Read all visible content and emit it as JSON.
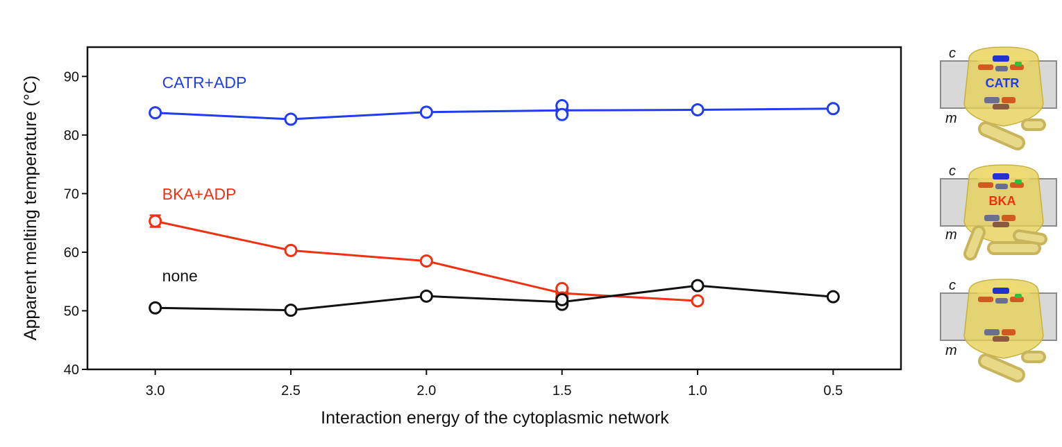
{
  "chart_data": {
    "type": "line",
    "xlabel": "Interaction energy of the cytoplasmic network",
    "ylabel": "Apparent melting temperature (°C)",
    "x_ticks": [
      "3.0",
      "2.5",
      "2.0",
      "1.5",
      "1.0",
      "0.5"
    ],
    "x_reversed": true,
    "xlim": [
      3.25,
      0.25
    ],
    "ylim": [
      40,
      95
    ],
    "y_ticks": [
      "40",
      "50",
      "60",
      "70",
      "80",
      "90"
    ],
    "grid": false,
    "series": [
      {
        "name": "CATR+ADP",
        "color": "#1f3cf0",
        "points": [
          {
            "x": 3.0,
            "y": 83.8
          },
          {
            "x": 2.5,
            "y": 82.7
          },
          {
            "x": 2.0,
            "y": 83.9
          },
          {
            "x": 1.5,
            "y": 84.2
          },
          {
            "x": 1.0,
            "y": 84.3
          },
          {
            "x": 0.5,
            "y": 84.5
          }
        ],
        "extra_points": [
          {
            "x": 1.5,
            "y": 85.0
          },
          {
            "x": 1.5,
            "y": 83.5
          }
        ]
      },
      {
        "name": "BKA+ADP",
        "color": "#f03010",
        "points": [
          {
            "x": 3.0,
            "y": 65.3,
            "error": 1.0
          },
          {
            "x": 2.5,
            "y": 60.3
          },
          {
            "x": 2.0,
            "y": 58.5
          },
          {
            "x": 1.5,
            "y": 53.0
          },
          {
            "x": 1.0,
            "y": 51.7
          }
        ],
        "extra_points": [
          {
            "x": 1.5,
            "y": 53.8
          },
          {
            "x": 1.5,
            "y": 52.2
          }
        ]
      },
      {
        "name": "none",
        "color": "#111111",
        "points": [
          {
            "x": 3.0,
            "y": 50.5
          },
          {
            "x": 2.5,
            "y": 50.1
          },
          {
            "x": 2.0,
            "y": 52.5
          },
          {
            "x": 1.5,
            "y": 51.5
          },
          {
            "x": 1.0,
            "y": 54.3
          },
          {
            "x": 0.5,
            "y": 52.4
          }
        ],
        "extra_points": [
          {
            "x": 1.5,
            "y": 51.1
          },
          {
            "x": 1.5,
            "y": 51.9
          }
        ]
      }
    ]
  },
  "side_panels": [
    {
      "top_label": "c",
      "bottom_label": "m",
      "center_label": "CATR",
      "center_color": "#1f3cf0"
    },
    {
      "top_label": "c",
      "bottom_label": "m",
      "center_label": "BKA",
      "center_color": "#f03010"
    },
    {
      "top_label": "c",
      "bottom_label": "m",
      "center_label": "",
      "center_color": "#111111"
    }
  ]
}
